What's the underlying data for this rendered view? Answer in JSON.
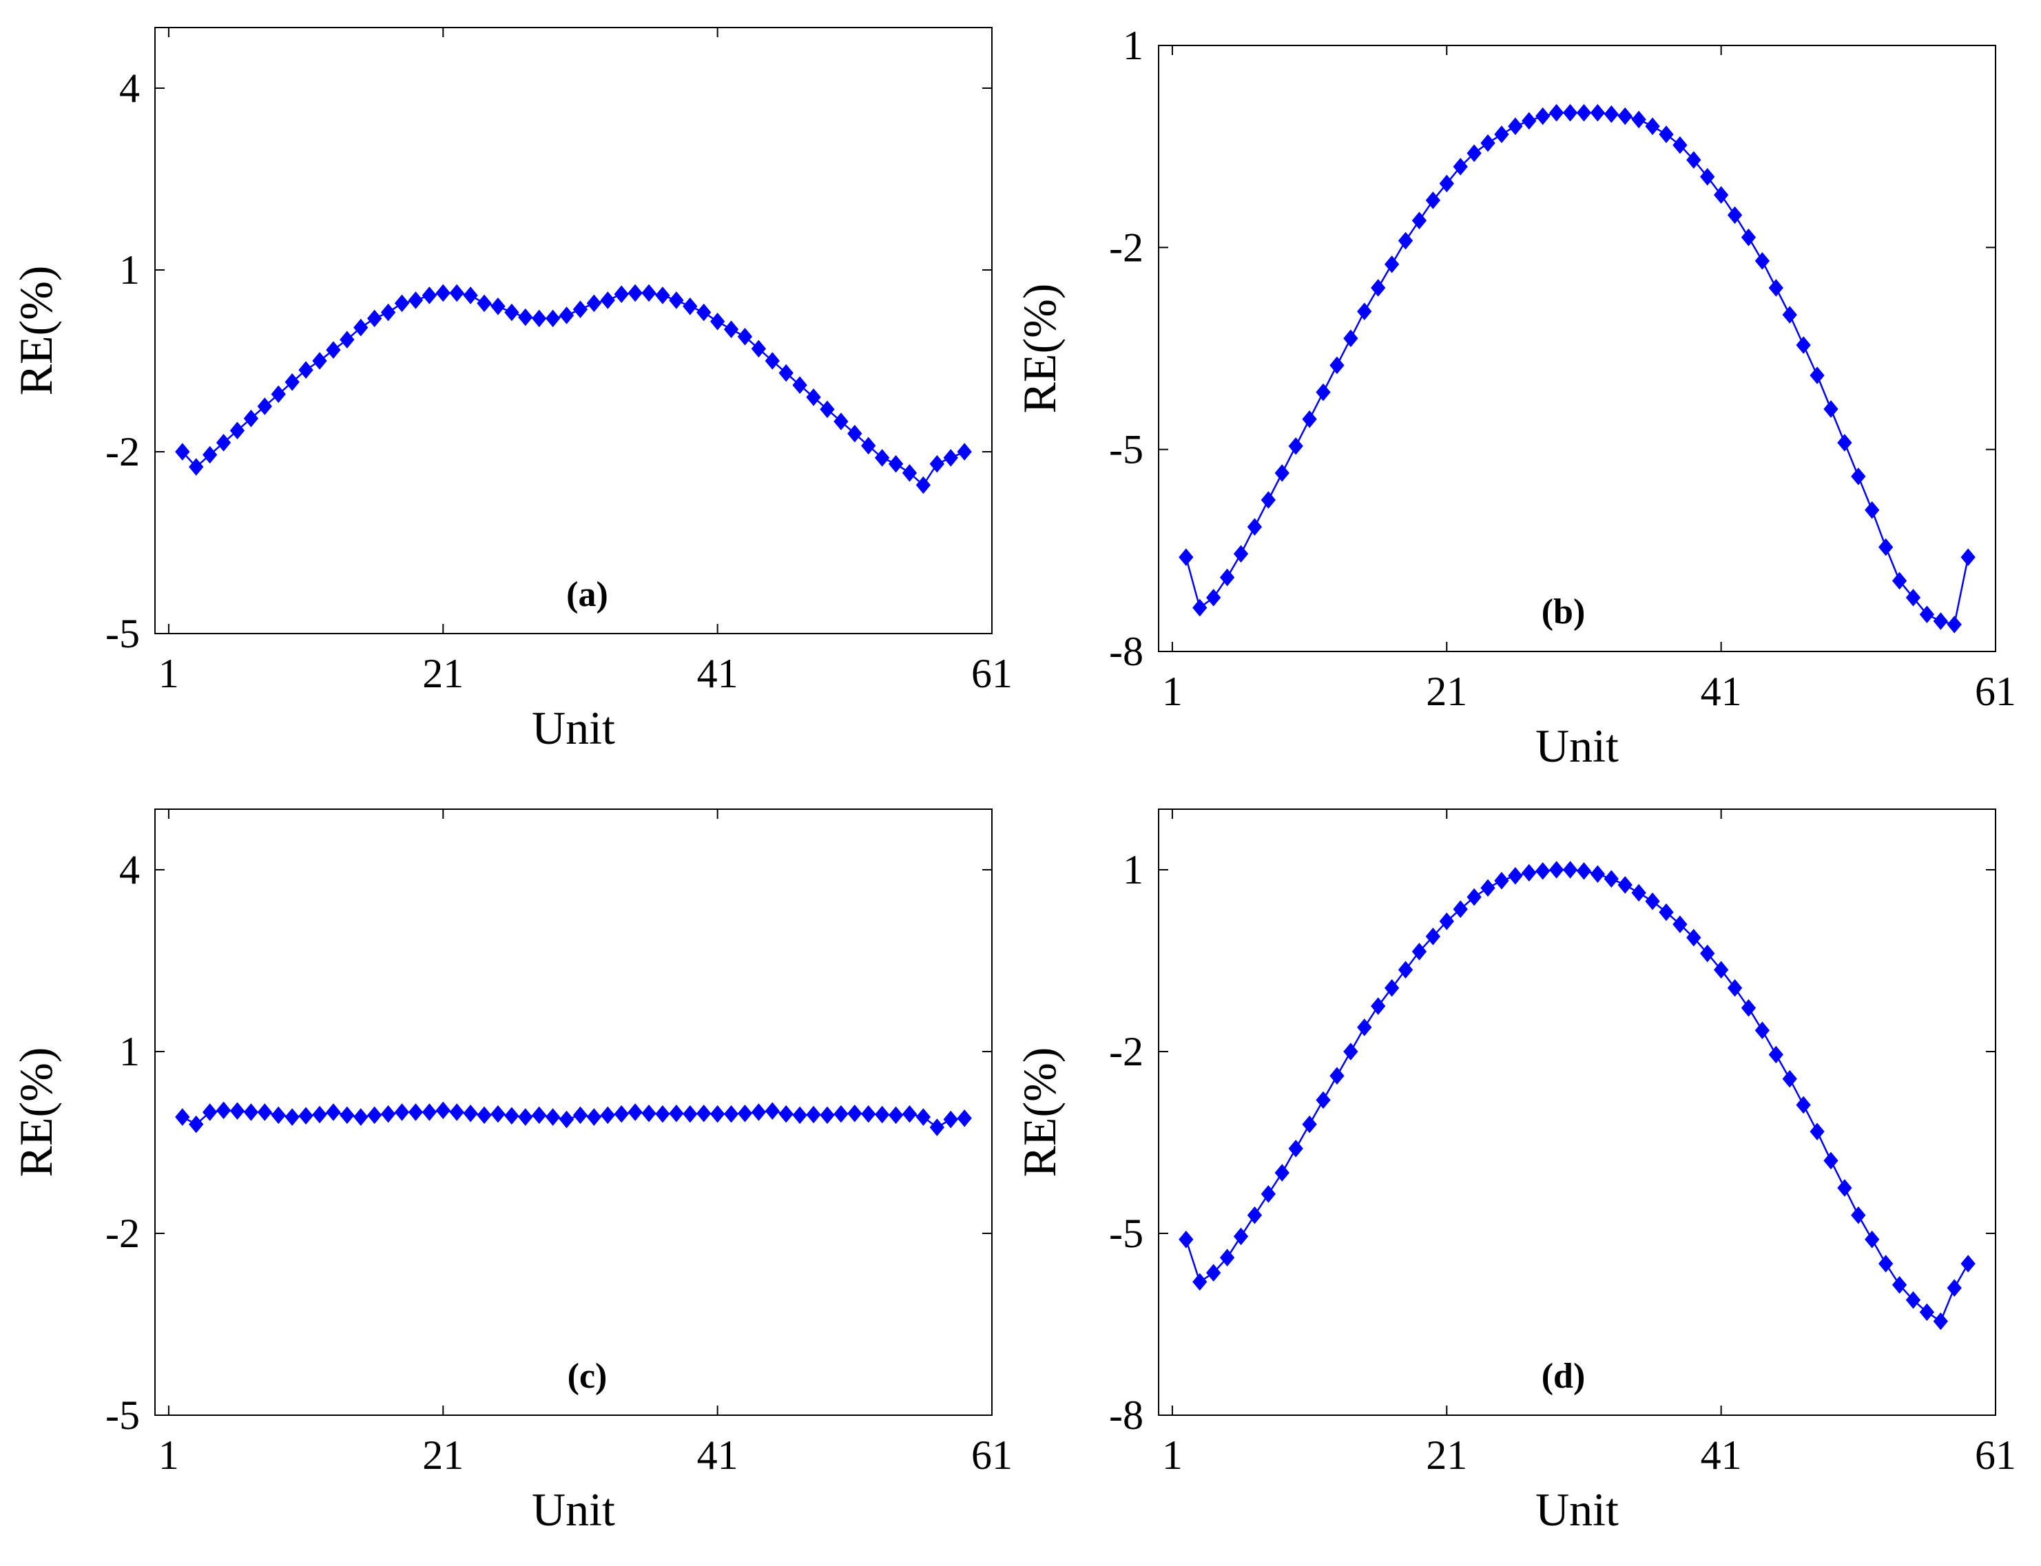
{
  "chart_data": [
    {
      "type": "line",
      "panel_label": "(a)",
      "xlabel": "Unit",
      "ylabel": "RE(%)",
      "xlim": [
        0,
        61
      ],
      "ylim": [
        -5,
        5
      ],
      "xticks": [
        1,
        21,
        41,
        61
      ],
      "yticks": [
        -5,
        -2,
        1,
        4
      ],
      "color": "#0000ff",
      "marker": "diamond",
      "series": [
        {
          "name": "RE",
          "x": [
            2,
            3,
            4,
            5,
            6,
            7,
            8,
            9,
            10,
            11,
            12,
            13,
            14,
            15,
            16,
            17,
            18,
            19,
            20,
            21,
            22,
            23,
            24,
            25,
            26,
            27,
            28,
            29,
            30,
            31,
            32,
            33,
            34,
            35,
            36,
            37,
            38,
            39,
            40,
            41,
            42,
            43,
            44,
            45,
            46,
            47,
            48,
            49,
            50,
            51,
            52,
            53,
            54,
            55,
            56,
            57,
            58,
            59
          ],
          "values": [
            -2.0,
            -2.25,
            -2.05,
            -1.85,
            -1.65,
            -1.45,
            -1.25,
            -1.05,
            -0.85,
            -0.65,
            -0.5,
            -0.32,
            -0.15,
            0.05,
            0.2,
            0.3,
            0.45,
            0.5,
            0.58,
            0.62,
            0.62,
            0.58,
            0.45,
            0.4,
            0.3,
            0.22,
            0.2,
            0.2,
            0.25,
            0.35,
            0.45,
            0.5,
            0.6,
            0.62,
            0.62,
            0.58,
            0.5,
            0.4,
            0.3,
            0.15,
            0.02,
            -0.1,
            -0.3,
            -0.5,
            -0.7,
            -0.9,
            -1.1,
            -1.3,
            -1.5,
            -1.7,
            -1.9,
            -2.1,
            -2.2,
            -2.35,
            -2.55,
            -2.2,
            -2.1,
            -2.0
          ]
        }
      ]
    },
    {
      "type": "line",
      "panel_label": "(b)",
      "xlabel": "Unit",
      "ylabel": "RE(%)",
      "xlim": [
        0,
        61
      ],
      "ylim": [
        -8,
        1
      ],
      "xticks": [
        1,
        21,
        41,
        61
      ],
      "yticks": [
        -8,
        -5,
        -2,
        1
      ],
      "color": "#0000ff",
      "marker": "diamond",
      "series": [
        {
          "name": "RE",
          "x": [
            2,
            3,
            4,
            5,
            6,
            7,
            8,
            9,
            10,
            11,
            12,
            13,
            14,
            15,
            16,
            17,
            18,
            19,
            20,
            21,
            22,
            23,
            24,
            25,
            26,
            27,
            28,
            29,
            30,
            31,
            32,
            33,
            34,
            35,
            36,
            37,
            38,
            39,
            40,
            41,
            42,
            43,
            44,
            45,
            46,
            47,
            48,
            49,
            50,
            51,
            52,
            53,
            54,
            55,
            56,
            57,
            58,
            59
          ],
          "values": [
            -6.6,
            -7.35,
            -7.2,
            -6.9,
            -6.55,
            -6.15,
            -5.75,
            -5.35,
            -4.95,
            -4.55,
            -4.15,
            -3.75,
            -3.35,
            -2.95,
            -2.6,
            -2.25,
            -1.9,
            -1.6,
            -1.3,
            -1.05,
            -0.8,
            -0.6,
            -0.45,
            -0.32,
            -0.2,
            -0.12,
            -0.05,
            0.0,
            0.0,
            0.0,
            0.0,
            -0.02,
            -0.05,
            -0.1,
            -0.2,
            -0.32,
            -0.48,
            -0.7,
            -0.95,
            -1.22,
            -1.52,
            -1.85,
            -2.2,
            -2.6,
            -3.0,
            -3.45,
            -3.9,
            -4.4,
            -4.9,
            -5.4,
            -5.9,
            -6.45,
            -6.95,
            -7.2,
            -7.45,
            -7.55,
            -7.6,
            -6.6
          ]
        }
      ]
    },
    {
      "type": "line",
      "panel_label": "(c)",
      "xlabel": "Unit",
      "ylabel": "RE(%)",
      "xlim": [
        0,
        61
      ],
      "ylim": [
        -5,
        5
      ],
      "xticks": [
        1,
        21,
        41,
        61
      ],
      "yticks": [
        -5,
        -2,
        1,
        4
      ],
      "color": "#0000ff",
      "marker": "diamond",
      "series": [
        {
          "name": "RE",
          "x": [
            2,
            3,
            4,
            5,
            6,
            7,
            8,
            9,
            10,
            11,
            12,
            13,
            14,
            15,
            16,
            17,
            18,
            19,
            20,
            21,
            22,
            23,
            24,
            25,
            26,
            27,
            28,
            29,
            30,
            31,
            32,
            33,
            34,
            35,
            36,
            37,
            38,
            39,
            40,
            41,
            42,
            43,
            44,
            45,
            46,
            47,
            48,
            49,
            50,
            51,
            52,
            53,
            54,
            55,
            56,
            57,
            58,
            59
          ],
          "values": [
            -0.08,
            -0.2,
            0.0,
            0.03,
            0.02,
            0.0,
            0.0,
            -0.05,
            -0.08,
            -0.06,
            -0.04,
            0.0,
            -0.05,
            -0.08,
            -0.05,
            -0.03,
            0.0,
            0.0,
            0.0,
            0.03,
            0.0,
            -0.02,
            -0.05,
            -0.03,
            -0.06,
            -0.08,
            -0.05,
            -0.08,
            -0.12,
            -0.05,
            -0.08,
            -0.05,
            -0.03,
            0.0,
            -0.02,
            -0.03,
            -0.02,
            -0.03,
            -0.02,
            -0.03,
            -0.03,
            -0.02,
            0.0,
            0.02,
            -0.03,
            -0.05,
            -0.04,
            -0.05,
            -0.03,
            -0.02,
            -0.03,
            -0.04,
            -0.05,
            -0.03,
            -0.08,
            -0.25,
            -0.12,
            -0.1
          ]
        }
      ]
    },
    {
      "type": "line",
      "panel_label": "(d)",
      "xlabel": "Unit",
      "ylabel": "RE(%)",
      "xlim": [
        0,
        61
      ],
      "ylim": [
        -8,
        2
      ],
      "xticks": [
        1,
        21,
        41,
        61
      ],
      "yticks": [
        -8,
        -5,
        -2,
        1
      ],
      "color": "#0000ff",
      "marker": "diamond",
      "series": [
        {
          "name": "RE",
          "x": [
            2,
            3,
            4,
            5,
            6,
            7,
            8,
            9,
            10,
            11,
            12,
            13,
            14,
            15,
            16,
            17,
            18,
            19,
            20,
            21,
            22,
            23,
            24,
            25,
            26,
            27,
            28,
            29,
            30,
            31,
            32,
            33,
            34,
            35,
            36,
            37,
            38,
            39,
            40,
            41,
            42,
            43,
            44,
            45,
            46,
            47,
            48,
            49,
            50,
            51,
            52,
            53,
            54,
            55,
            56,
            57,
            58,
            59
          ],
          "values": [
            -5.1,
            -5.8,
            -5.65,
            -5.4,
            -5.05,
            -4.7,
            -4.35,
            -4.0,
            -3.6,
            -3.2,
            -2.8,
            -2.4,
            -2.0,
            -1.6,
            -1.25,
            -0.95,
            -0.65,
            -0.35,
            -0.1,
            0.15,
            0.35,
            0.55,
            0.7,
            0.82,
            0.9,
            0.95,
            0.98,
            1.0,
            1.0,
            0.98,
            0.93,
            0.85,
            0.75,
            0.62,
            0.48,
            0.3,
            0.1,
            -0.12,
            -0.38,
            -0.65,
            -0.95,
            -1.28,
            -1.65,
            -2.05,
            -2.45,
            -2.88,
            -3.32,
            -3.8,
            -4.25,
            -4.7,
            -5.1,
            -5.5,
            -5.85,
            -6.1,
            -6.3,
            -6.45,
            -5.9,
            -5.5
          ]
        }
      ]
    }
  ]
}
